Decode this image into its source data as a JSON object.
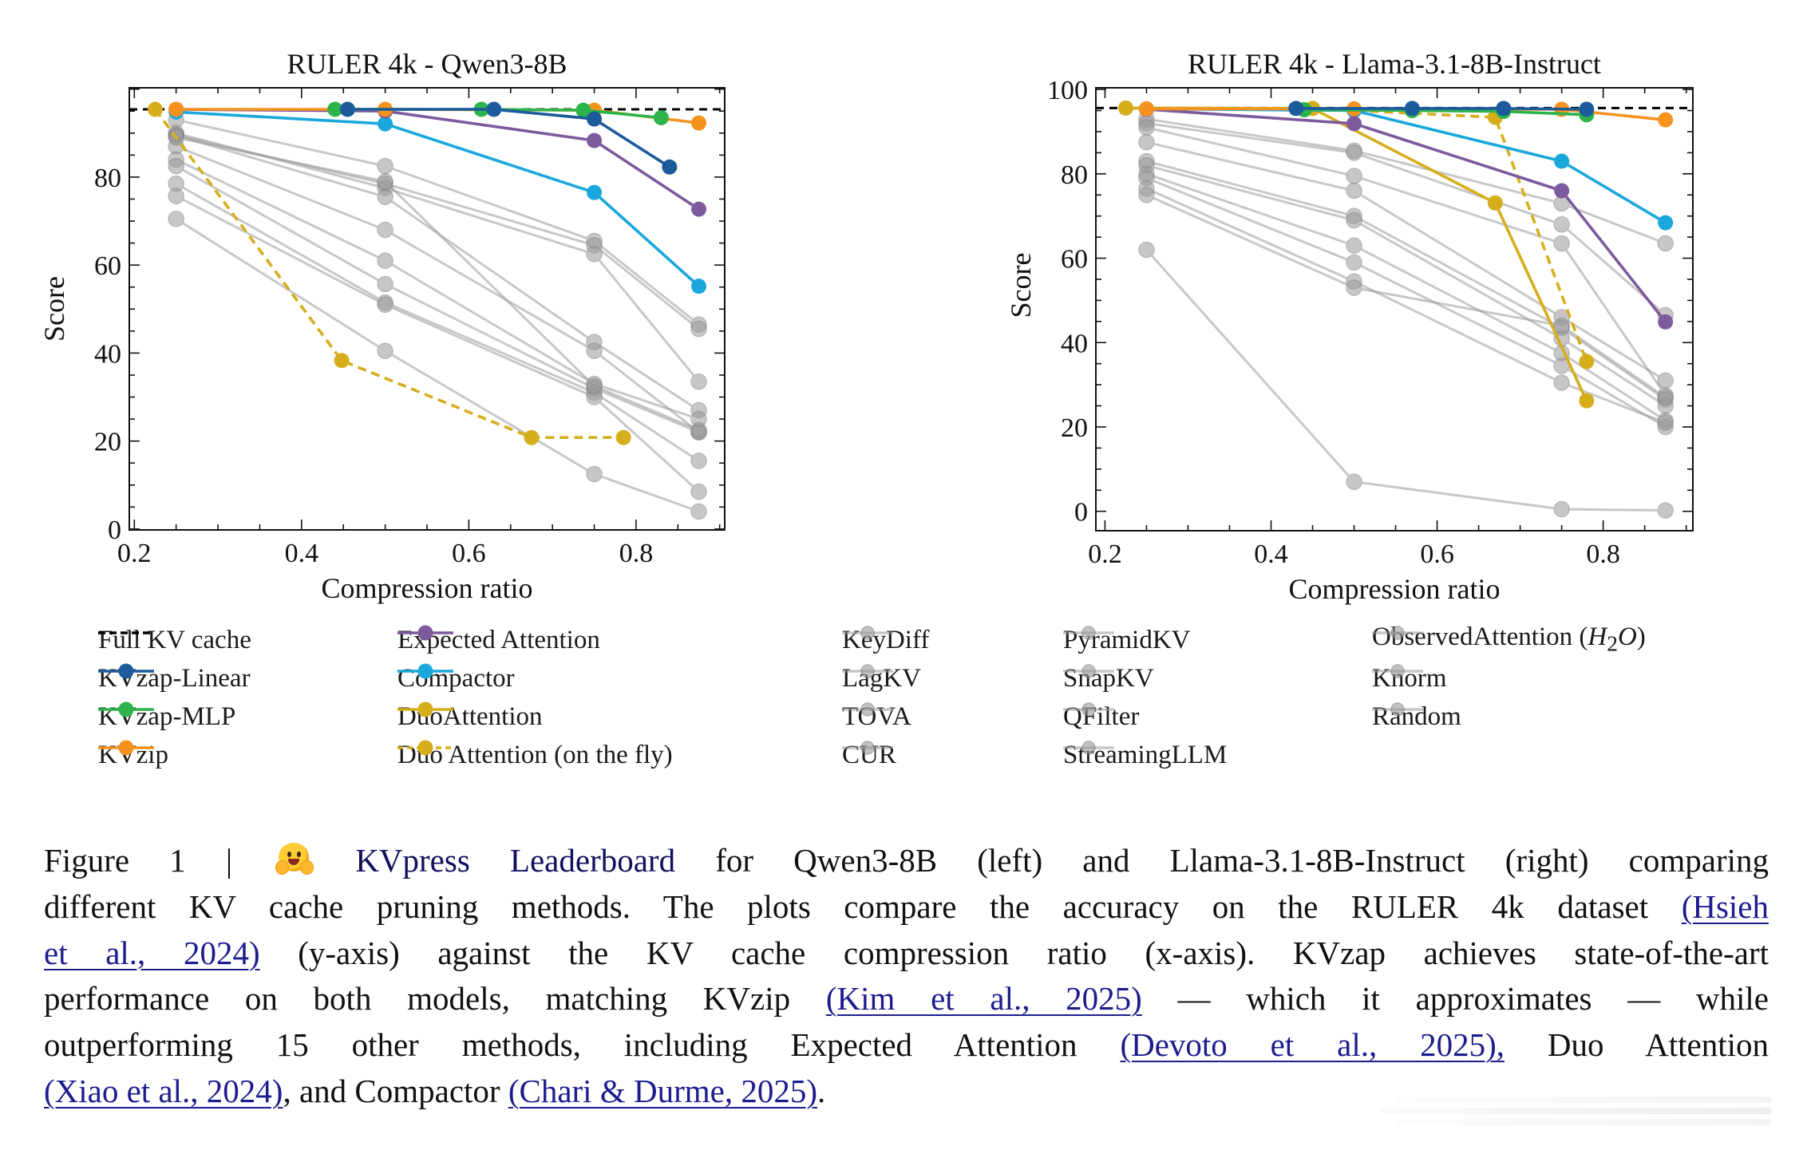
{
  "chart_data": [
    {
      "type": "line",
      "title": "RULER 4k - Qwen3-8B",
      "xlabel": "Compression ratio",
      "ylabel": "Score",
      "xlim": [
        0.194,
        0.906
      ],
      "ylim": [
        -0.2,
        100.3
      ],
      "xticks": [
        0.2,
        0.4,
        0.6,
        0.8
      ],
      "xtick_labels": [
        "0.2",
        "0.4",
        "0.6",
        "0.8"
      ],
      "yticks": [
        0,
        20,
        40,
        60,
        80
      ],
      "ytick_labels": [
        "0",
        "20",
        "40",
        "60",
        "80"
      ],
      "x_minor_step": 0.05,
      "y_minor_step": 5,
      "grid": false,
      "reference_line": {
        "name": "Full KV cache",
        "y": 95.4
      },
      "series": [
        {
          "name": "KeyDiff",
          "group": "other",
          "x": [
            0.25,
            0.5,
            0.75,
            0.875
          ],
          "y": [
            93.0,
            82.5,
            65.5,
            46.5
          ]
        },
        {
          "name": "LagKV",
          "group": "other",
          "x": [
            0.25,
            0.5,
            0.75,
            0.875
          ],
          "y": [
            89.5,
            78.5,
            64.5,
            45.5
          ]
        },
        {
          "name": "TOVA",
          "group": "other",
          "x": [
            0.25,
            0.5,
            0.75,
            0.875
          ],
          "y": [
            90.0,
            77.5,
            62.5,
            33.5
          ]
        },
        {
          "name": "CUR",
          "group": "other",
          "x": [
            0.25,
            0.5,
            0.75,
            0.875
          ],
          "y": [
            89.5,
            75.5,
            42.5,
            27.0
          ]
        },
        {
          "name": "PyramidKV",
          "group": "other",
          "x": [
            0.25,
            0.5,
            0.75,
            0.875
          ],
          "y": [
            87.0,
            68.0,
            40.5,
            22.0
          ]
        },
        {
          "name": "SnapKV",
          "group": "other",
          "x": [
            0.25,
            0.5,
            0.75,
            0.875
          ],
          "y": [
            84.0,
            61.0,
            33.0,
            25.0
          ]
        },
        {
          "name": "QFilter",
          "group": "other",
          "x": [
            0.25,
            0.5,
            0.75,
            0.875
          ],
          "y": [
            82.5,
            55.7,
            32.0,
            22.0
          ]
        },
        {
          "name": "StreamingLLM",
          "group": "other",
          "x": [
            0.25,
            0.5,
            0.75,
            0.875
          ],
          "y": [
            78.5,
            51.5,
            31.0,
            15.5
          ]
        },
        {
          "name": "ObservedAttention (H2O)",
          "group": "other",
          "x": [
            0.25,
            0.5,
            0.75,
            0.875
          ],
          "y": [
            75.7,
            51.0,
            30.0,
            8.5
          ]
        },
        {
          "name": "Knorm",
          "group": "other",
          "x": [
            0.25,
            0.5,
            0.75,
            0.875
          ],
          "y": [
            70.5,
            40.5,
            12.5,
            4.0
          ]
        },
        {
          "name": "Random",
          "group": "other",
          "x": [
            0.25,
            0.5,
            0.75,
            0.875
          ],
          "y": [
            89.0,
            79.0,
            32.5,
            22.5
          ]
        },
        {
          "name": "Compactor",
          "group": "main",
          "x": [
            0.25,
            0.5,
            0.75,
            0.875
          ],
          "y": [
            94.8,
            92.1,
            76.5,
            55.2
          ]
        },
        {
          "name": "Expected Attention",
          "group": "main",
          "x": [
            0.25,
            0.5,
            0.75,
            0.875
          ],
          "y": [
            95.4,
            95.0,
            88.3,
            72.7
          ]
        },
        {
          "name": "Duo Attention (on the fly)",
          "group": "main",
          "x": [
            0.225,
            0.448,
            0.675,
            0.785
          ],
          "y": [
            95.4,
            38.3,
            20.8,
            20.8
          ]
        },
        {
          "name": "KVzip",
          "group": "main",
          "x": [
            0.25,
            0.5,
            0.75,
            0.875
          ],
          "y": [
            95.4,
            95.4,
            95.2,
            92.3
          ]
        },
        {
          "name": "KVzap-MLP",
          "group": "main",
          "x": [
            0.44,
            0.615,
            0.737,
            0.83
          ],
          "y": [
            95.4,
            95.4,
            95.2,
            93.5
          ]
        },
        {
          "name": "KVzap-Linear",
          "group": "main",
          "x": [
            0.455,
            0.63,
            0.75,
            0.84
          ],
          "y": [
            95.4,
            95.4,
            93.2,
            82.3
          ]
        }
      ]
    },
    {
      "type": "line",
      "title": "RULER 4k - Llama-3.1-8B-Instruct",
      "xlabel": "Compression ratio",
      "ylabel": "Score",
      "xlim": [
        0.189,
        0.908
      ],
      "ylim": [
        -4.6,
        100.4
      ],
      "xticks": [
        0.2,
        0.4,
        0.6,
        0.8
      ],
      "xtick_labels": [
        "0.2",
        "0.4",
        "0.6",
        "0.8"
      ],
      "yticks": [
        0,
        20,
        40,
        60,
        80,
        100
      ],
      "ytick_labels": [
        "0",
        "20",
        "40",
        "60",
        "80",
        "100"
      ],
      "x_minor_step": 0.05,
      "y_minor_step": 5,
      "grid": false,
      "reference_line": {
        "name": "Full KV cache",
        "y": 95.6
      },
      "series": [
        {
          "name": "KeyDiff",
          "group": "other",
          "x": [
            0.25,
            0.5,
            0.75,
            0.875
          ],
          "y": [
            93.0,
            85.5,
            73.0,
            63.5
          ]
        },
        {
          "name": "LagKV",
          "group": "other",
          "x": [
            0.25,
            0.5,
            0.75,
            0.875
          ],
          "y": [
            92.0,
            85.0,
            68.0,
            46.5
          ]
        },
        {
          "name": "TOVA",
          "group": "other",
          "x": [
            0.25,
            0.5,
            0.75,
            0.875
          ],
          "y": [
            91.0,
            79.5,
            63.5,
            27.5
          ]
        },
        {
          "name": "CUR",
          "group": "other",
          "x": [
            0.25,
            0.5,
            0.75,
            0.875
          ],
          "y": [
            87.5,
            76.0,
            46.0,
            31.0
          ]
        },
        {
          "name": "PyramidKV",
          "group": "other",
          "x": [
            0.25,
            0.5,
            0.75,
            0.875
          ],
          "y": [
            83.0,
            70.0,
            43.5,
            26.5
          ]
        },
        {
          "name": "SnapKV",
          "group": "other",
          "x": [
            0.25,
            0.5,
            0.75,
            0.875
          ],
          "y": [
            82.0,
            69.0,
            41.0,
            25.0
          ]
        },
        {
          "name": "QFilter",
          "group": "other",
          "x": [
            0.25,
            0.5,
            0.75,
            0.875
          ],
          "y": [
            80.0,
            63.0,
            37.5,
            21.5
          ]
        },
        {
          "name": "StreamingLLM",
          "group": "other",
          "x": [
            0.25,
            0.5,
            0.75,
            0.875
          ],
          "y": [
            79.0,
            59.0,
            34.5,
            20.0
          ]
        },
        {
          "name": "ObservedAttention (H2O)",
          "group": "other",
          "x": [
            0.25,
            0.5,
            0.75,
            0.875
          ],
          "y": [
            76.5,
            54.5,
            30.5,
            21.0
          ]
        },
        {
          "name": "Knorm",
          "group": "other",
          "x": [
            0.25,
            0.5,
            0.75,
            0.875
          ],
          "y": [
            75.0,
            53.0,
            44.0,
            27.0
          ]
        },
        {
          "name": "Random",
          "group": "other",
          "x": [
            0.25,
            0.5,
            0.75,
            0.875
          ],
          "y": [
            62.0,
            7.0,
            0.5,
            0.2
          ]
        },
        {
          "name": "DuoAttention",
          "group": "main",
          "x": [
            0.225,
            0.45,
            0.67,
            0.78
          ],
          "y": [
            95.6,
            95.5,
            73.1,
            26.2
          ]
        },
        {
          "name": "Duo Attention (on the fly)",
          "group": "main",
          "x": [
            0.225,
            0.45,
            0.67,
            0.78
          ],
          "y": [
            95.6,
            95.5,
            93.4,
            35.5
          ]
        },
        {
          "name": "Compactor",
          "group": "main",
          "x": [
            0.25,
            0.5,
            0.75,
            0.875
          ],
          "y": [
            95.4,
            95.0,
            83.0,
            68.4
          ]
        },
        {
          "name": "Expected Attention",
          "group": "main",
          "x": [
            0.25,
            0.5,
            0.75,
            0.875
          ],
          "y": [
            95.3,
            91.9,
            76.0,
            44.9
          ]
        },
        {
          "name": "KVzip",
          "group": "main",
          "x": [
            0.25,
            0.5,
            0.75,
            0.875
          ],
          "y": [
            95.4,
            95.4,
            95.3,
            92.8
          ]
        },
        {
          "name": "KVzap-MLP",
          "group": "main",
          "x": [
            0.44,
            0.57,
            0.68,
            0.78
          ],
          "y": [
            95.2,
            95.0,
            94.8,
            94.0
          ]
        },
        {
          "name": "KVzap-Linear",
          "group": "main",
          "x": [
            0.43,
            0.57,
            0.68,
            0.78
          ],
          "y": [
            95.5,
            95.5,
            95.5,
            95.3
          ]
        }
      ]
    }
  ],
  "styles": {
    "Full KV cache": {
      "color": "#000000",
      "dash": true,
      "marker": false
    },
    "KVzap-Linear": {
      "color": "#1c5b9c",
      "dash": false,
      "marker": true
    },
    "KVzap-MLP": {
      "color": "#2db34a",
      "dash": false,
      "marker": true
    },
    "KVzip": {
      "color": "#f6921e",
      "dash": false,
      "marker": true
    },
    "Expected Attention": {
      "color": "#7c5a9d",
      "dash": false,
      "marker": true
    },
    "Compactor": {
      "color": "#1aa7dc",
      "dash": false,
      "marker": true
    },
    "DuoAttention": {
      "color": "#d6ae1c",
      "dash": false,
      "marker": true
    },
    "Duo Attention (on the fly)": {
      "color": "#d6ae1c",
      "dash": true,
      "marker": true
    },
    "other": {
      "color": "#9a9a9a",
      "dash": false,
      "marker": true
    }
  },
  "legend": {
    "columns": [
      [
        "Full KV cache",
        "KVzap-Linear",
        "KVzap-MLP",
        "KVzip"
      ],
      [
        "Expected Attention",
        "Compactor",
        "DuoAttention",
        "Duo Attention (on the fly)"
      ],
      [
        "KeyDiff",
        "LagKV",
        "TOVA",
        "CUR"
      ],
      [
        "PyramidKV",
        "SnapKV",
        "QFilter",
        "StreamingLLM"
      ],
      [
        "ObservedAttention (H2O)",
        "Knorm",
        "Random"
      ]
    ],
    "display_labels": {
      "ObservedAttention (H2O)": "ObservedAttention (<i>H</i><sub>2</sub><i>O</i>)"
    }
  },
  "caption": {
    "lines": [
      [
        {
          "text": "Figure 1 | "
        },
        {
          "icon": "hugging-face-emoji-icon"
        },
        {
          "text": "KVpress Leaderboard",
          "style": "brand"
        },
        {
          "text": " for Qwen3-8B (left) and Llama-3.1-8B-Instruct (right) comparing"
        }
      ],
      [
        {
          "text": "different KV cache pruning methods. The plots compare the accuracy on the RULER 4k dataset "
        },
        {
          "text": "(Hsieh",
          "style": "link"
        }
      ],
      [
        {
          "text": "et al., 2024)",
          "style": "link"
        },
        {
          "text": " (y-axis) against the KV cache compression ratio (x-axis). KVzap achieves state-of-the-art"
        }
      ],
      [
        {
          "text": "performance on both models, matching KVzip "
        },
        {
          "text": "(Kim et al., 2025)",
          "style": "link"
        },
        {
          "text": " — which it approximates — while"
        }
      ],
      [
        {
          "text": "outperforming 15 other methods, including Expected Attention "
        },
        {
          "text": "(Devoto et al., 2025),",
          "style": "link"
        },
        {
          "text": " Duo Attention"
        }
      ],
      [
        {
          "text": "(Xiao et al., 2024)",
          "style": "link"
        },
        {
          "text": ", and Compactor "
        },
        {
          "text": "(Chari & Durme, 2025)",
          "style": "link"
        },
        {
          "text": "."
        }
      ]
    ]
  }
}
